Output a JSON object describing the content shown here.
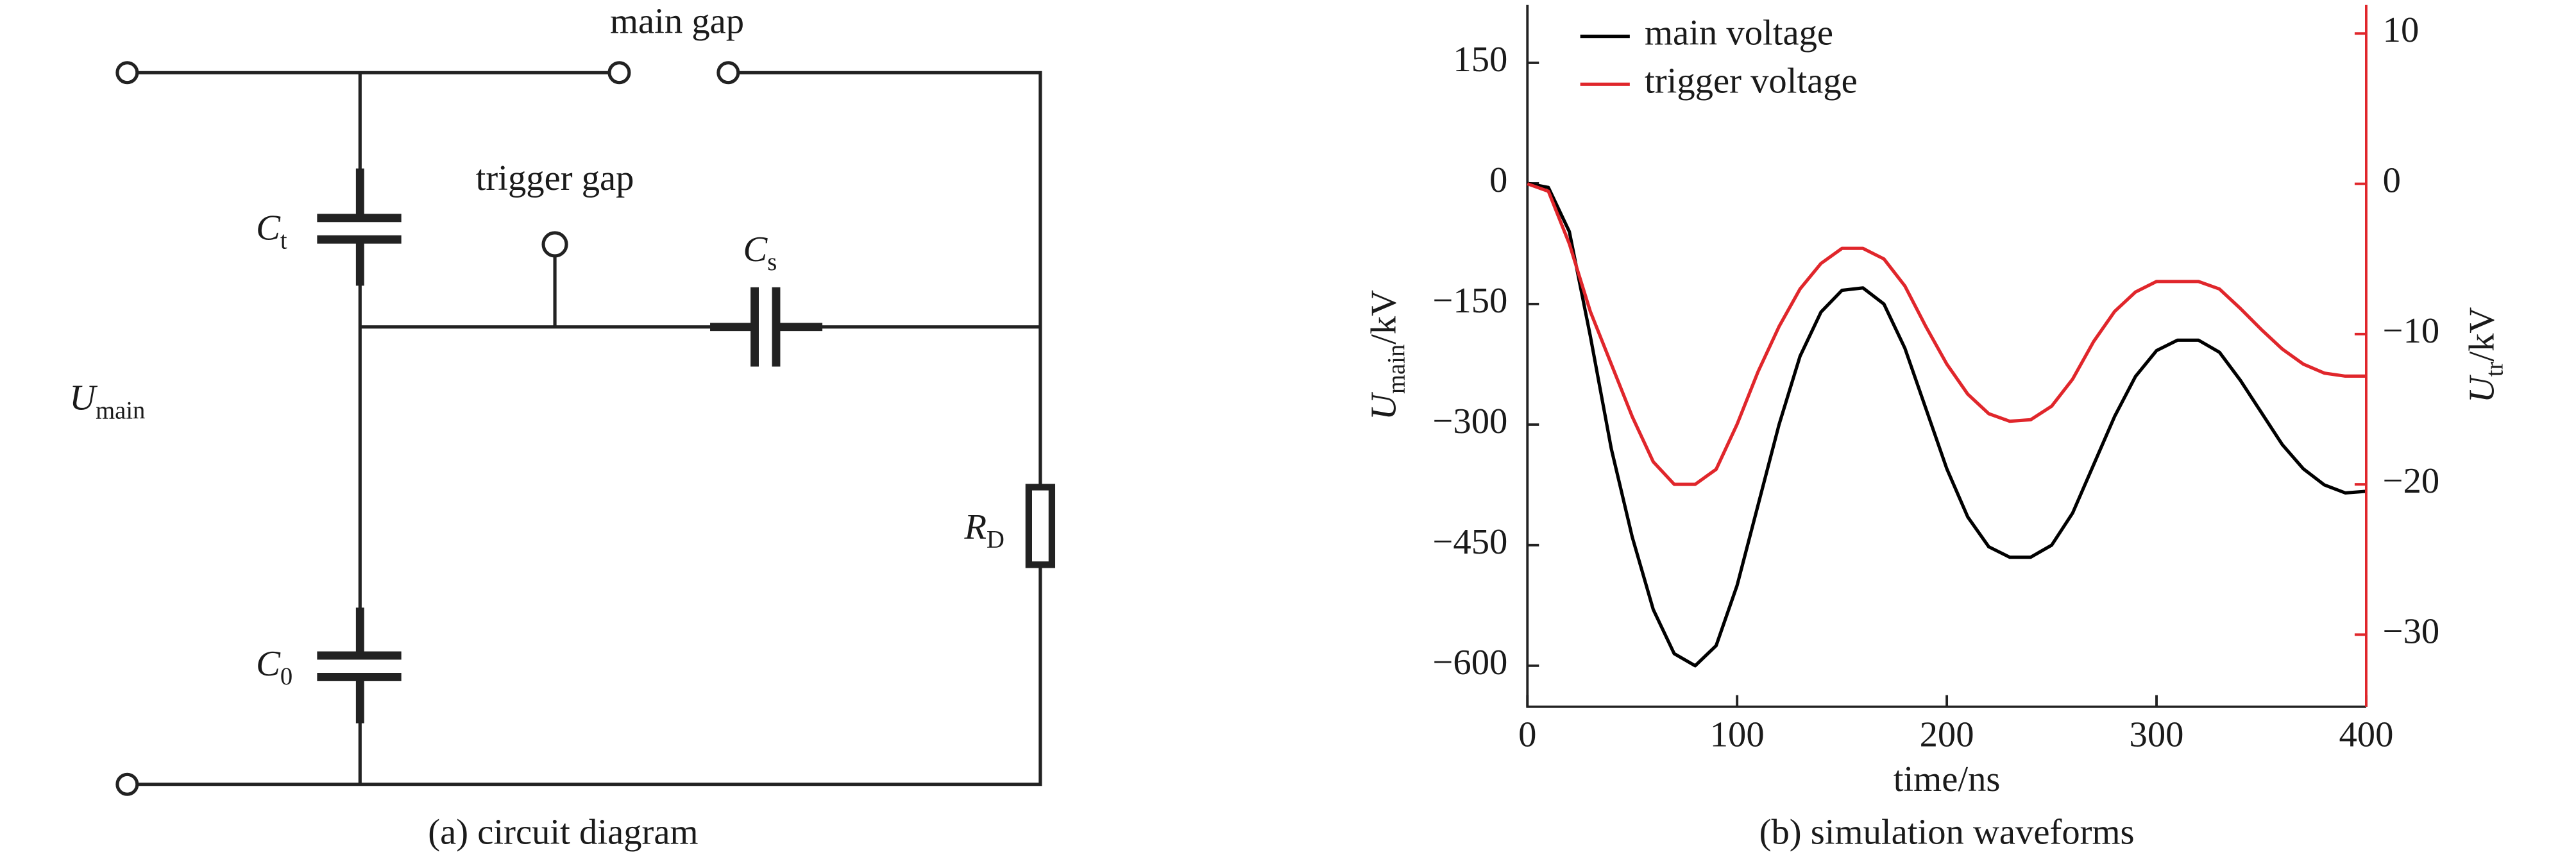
{
  "diagram": {
    "labels": {
      "main_gap": "main gap",
      "trigger_gap": "trigger gap",
      "ct": [
        "C",
        "t"
      ],
      "cs": [
        "C",
        "s"
      ],
      "c0": [
        "C",
        "0"
      ],
      "rd": [
        "R",
        "D"
      ],
      "umain": [
        "U",
        "main"
      ]
    },
    "caption": "(a) circuit diagram"
  },
  "chart_data": {
    "type": "line",
    "caption": "(b) simulation waveforms",
    "xlabel": "time/ns",
    "ylabel": [
      "U",
      "main",
      "/kV"
    ],
    "y2label": [
      "U",
      "tr",
      "/kV"
    ],
    "x": [
      0,
      10,
      20,
      30,
      40,
      50,
      60,
      70,
      80,
      90,
      100,
      110,
      120,
      130,
      140,
      150,
      160,
      170,
      180,
      190,
      200,
      210,
      220,
      230,
      240,
      250,
      260,
      270,
      280,
      290,
      300,
      310,
      320,
      330,
      340,
      350,
      360,
      370,
      380,
      390,
      400
    ],
    "series": [
      {
        "name": "main voltage",
        "color": "#000000",
        "axis": "y",
        "values": [
          0,
          -5,
          -60,
          -190,
          -330,
          -440,
          -530,
          -585,
          -600,
          -575,
          -500,
          -400,
          -300,
          -215,
          -160,
          -133,
          -130,
          -150,
          -205,
          -280,
          -355,
          -415,
          -452,
          -465,
          -465,
          -450,
          -410,
          -350,
          -290,
          -240,
          -208,
          -195,
          -195,
          -210,
          -245,
          -285,
          -325,
          -355,
          -375,
          -385,
          -383
        ]
      },
      {
        "name": "trigger voltage",
        "color": "#e0262b",
        "axis": "y2",
        "values": [
          0,
          -0.5,
          -4,
          -8.5,
          -12,
          -15.5,
          -18.5,
          -20,
          -20,
          -19,
          -16,
          -12.5,
          -9.5,
          -7,
          -5.3,
          -4.3,
          -4.3,
          -5,
          -6.8,
          -9.5,
          -12,
          -14,
          -15.3,
          -15.8,
          -15.7,
          -14.8,
          -13,
          -10.5,
          -8.5,
          -7.2,
          -6.5,
          -6.5,
          -6.5,
          -7,
          -8.3,
          -9.7,
          -11,
          -12,
          -12.6,
          -12.8,
          -12.8
        ]
      }
    ],
    "xlim": [
      0,
      400
    ],
    "xticks": [
      0,
      100,
      200,
      300,
      400
    ],
    "ylim": [
      -651,
      222
    ],
    "yticks": [
      {
        "value": -600,
        "label": "−600"
      },
      {
        "value": -450,
        "label": "−450"
      },
      {
        "value": -300,
        "label": "−300"
      },
      {
        "value": -150,
        "label": "−150"
      },
      0,
      150
    ],
    "y2lim": [
      -34.8,
      11.9
    ],
    "y2ticks": [
      {
        "value": -30,
        "label": "−30"
      },
      {
        "value": -20,
        "label": "−20"
      },
      {
        "value": -10,
        "label": "−10"
      },
      0,
      10
    ],
    "legend": "upper-left"
  }
}
